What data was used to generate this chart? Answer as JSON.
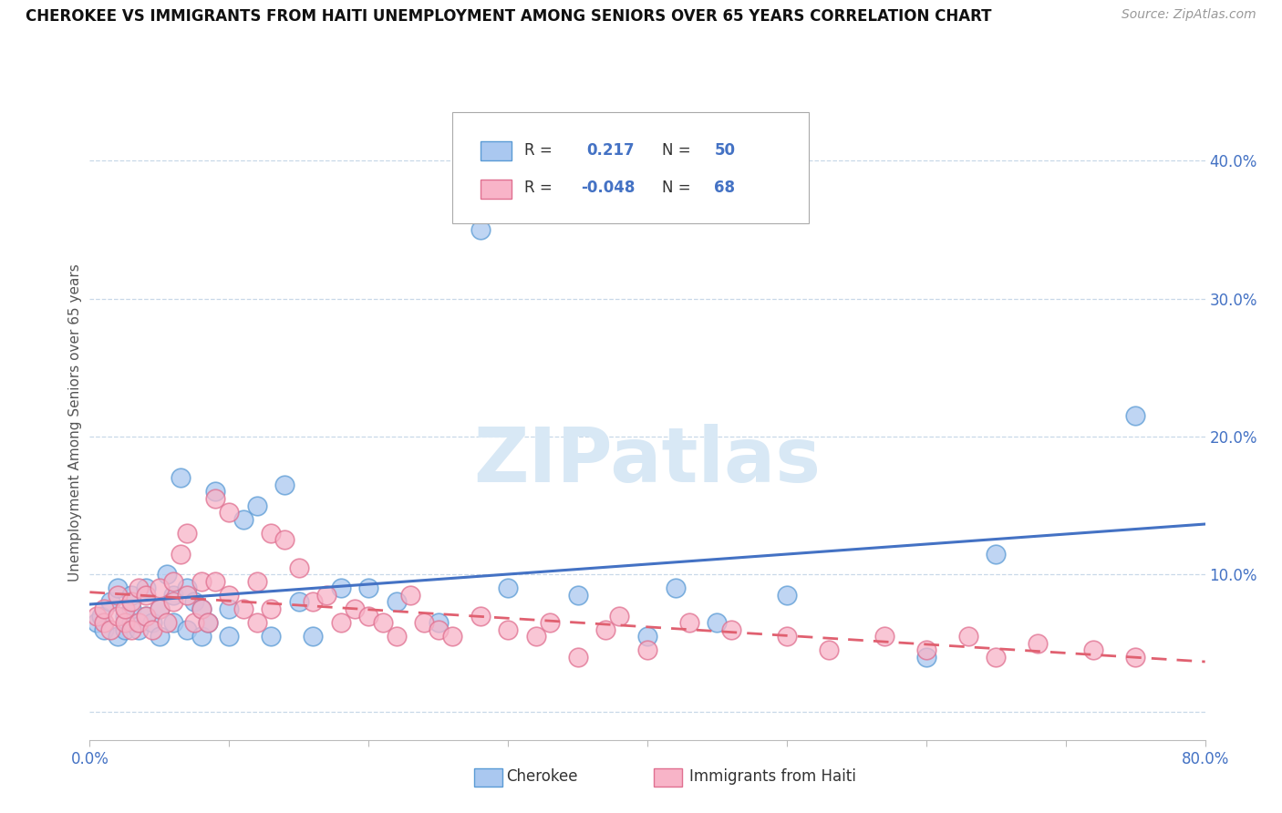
{
  "title": "CHEROKEE VS IMMIGRANTS FROM HAITI UNEMPLOYMENT AMONG SENIORS OVER 65 YEARS CORRELATION CHART",
  "source": "Source: ZipAtlas.com",
  "ylabel": "Unemployment Among Seniors over 65 years",
  "xlim": [
    0.0,
    0.8
  ],
  "ylim": [
    -0.02,
    0.44
  ],
  "xtick_positions": [
    0.0,
    0.1,
    0.2,
    0.3,
    0.4,
    0.5,
    0.6,
    0.7,
    0.8
  ],
  "xticklabels": [
    "0.0%",
    "",
    "",
    "",
    "",
    "",
    "",
    "",
    "80.0%"
  ],
  "ytick_positions": [
    0.0,
    0.1,
    0.2,
    0.3,
    0.4
  ],
  "yticklabels_right": [
    "",
    "10.0%",
    "20.0%",
    "30.0%",
    "40.0%"
  ],
  "cherokee_fill": "#aac8f0",
  "cherokee_edge": "#5b9bd5",
  "haiti_fill": "#f8b4c8",
  "haiti_edge": "#e07090",
  "cherokee_line": "#4472c4",
  "haiti_line": "#e06070",
  "watermark_text": "ZIPatlas",
  "watermark_color": "#d8e8f5",
  "legend_text_color": "#4472c4",
  "cherokee_x": [
    0.005,
    0.008,
    0.01,
    0.015,
    0.02,
    0.02,
    0.025,
    0.025,
    0.03,
    0.03,
    0.03,
    0.035,
    0.04,
    0.04,
    0.045,
    0.05,
    0.05,
    0.055,
    0.06,
    0.06,
    0.065,
    0.07,
    0.07,
    0.075,
    0.08,
    0.08,
    0.085,
    0.09,
    0.1,
    0.1,
    0.11,
    0.12,
    0.13,
    0.14,
    0.15,
    0.16,
    0.18,
    0.2,
    0.22,
    0.25,
    0.28,
    0.3,
    0.35,
    0.4,
    0.42,
    0.45,
    0.5,
    0.6,
    0.65,
    0.75
  ],
  "cherokee_y": [
    0.065,
    0.07,
    0.06,
    0.08,
    0.055,
    0.09,
    0.06,
    0.07,
    0.065,
    0.075,
    0.085,
    0.06,
    0.07,
    0.09,
    0.065,
    0.055,
    0.075,
    0.1,
    0.065,
    0.085,
    0.17,
    0.06,
    0.09,
    0.08,
    0.055,
    0.075,
    0.065,
    0.16,
    0.055,
    0.075,
    0.14,
    0.15,
    0.055,
    0.165,
    0.08,
    0.055,
    0.09,
    0.09,
    0.08,
    0.065,
    0.35,
    0.09,
    0.085,
    0.055,
    0.09,
    0.065,
    0.085,
    0.04,
    0.115,
    0.215
  ],
  "haiti_x": [
    0.005,
    0.01,
    0.01,
    0.015,
    0.02,
    0.02,
    0.025,
    0.025,
    0.03,
    0.03,
    0.035,
    0.035,
    0.04,
    0.04,
    0.045,
    0.05,
    0.05,
    0.055,
    0.06,
    0.06,
    0.065,
    0.07,
    0.07,
    0.075,
    0.08,
    0.08,
    0.085,
    0.09,
    0.09,
    0.1,
    0.1,
    0.11,
    0.12,
    0.12,
    0.13,
    0.13,
    0.14,
    0.15,
    0.16,
    0.17,
    0.18,
    0.19,
    0.2,
    0.21,
    0.22,
    0.23,
    0.24,
    0.25,
    0.26,
    0.28,
    0.3,
    0.32,
    0.33,
    0.35,
    0.37,
    0.38,
    0.4,
    0.43,
    0.46,
    0.5,
    0.53,
    0.57,
    0.6,
    0.63,
    0.65,
    0.68,
    0.72,
    0.75
  ],
  "haiti_y": [
    0.07,
    0.065,
    0.075,
    0.06,
    0.07,
    0.085,
    0.065,
    0.075,
    0.06,
    0.08,
    0.065,
    0.09,
    0.07,
    0.085,
    0.06,
    0.075,
    0.09,
    0.065,
    0.08,
    0.095,
    0.115,
    0.085,
    0.13,
    0.065,
    0.095,
    0.075,
    0.065,
    0.155,
    0.095,
    0.085,
    0.145,
    0.075,
    0.095,
    0.065,
    0.13,
    0.075,
    0.125,
    0.105,
    0.08,
    0.085,
    0.065,
    0.075,
    0.07,
    0.065,
    0.055,
    0.085,
    0.065,
    0.06,
    0.055,
    0.07,
    0.06,
    0.055,
    0.065,
    0.04,
    0.06,
    0.07,
    0.045,
    0.065,
    0.06,
    0.055,
    0.045,
    0.055,
    0.045,
    0.055,
    0.04,
    0.05,
    0.045,
    0.04
  ]
}
